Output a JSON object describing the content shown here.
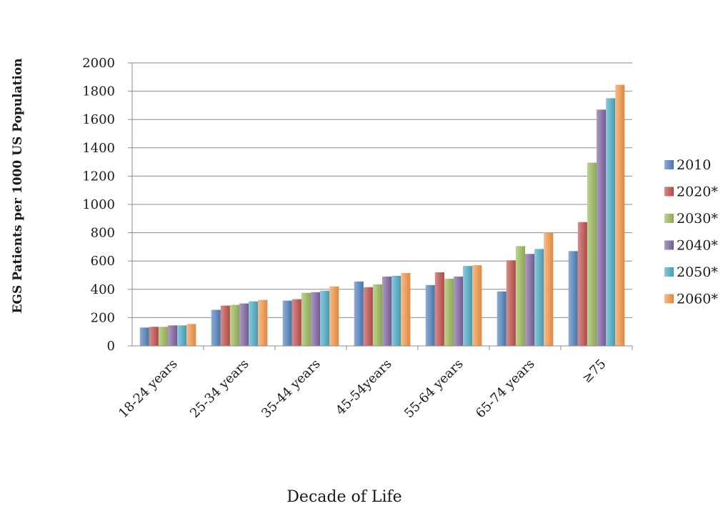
{
  "chart_data": {
    "type": "bar",
    "title": "",
    "xlabel": "Decade of Life",
    "ylabel": "EGS Patients per 1000 US Population",
    "ylim": [
      0,
      2000
    ],
    "yticks": [
      0,
      200,
      400,
      600,
      800,
      1000,
      1200,
      1400,
      1600,
      1800,
      2000
    ],
    "grid": true,
    "legend_position": "right",
    "categories": [
      "18-24 years",
      "25-34 years",
      "35-44 years",
      "45-54years",
      "55-64 years",
      "65-74 years",
      "≥75"
    ],
    "series": [
      {
        "name": "2010",
        "color": "#4f81bd",
        "values": [
          130,
          255,
          320,
          455,
          430,
          385,
          670
        ]
      },
      {
        "name": "2020*",
        "color": "#c0504d",
        "values": [
          135,
          285,
          330,
          415,
          520,
          605,
          875
        ]
      },
      {
        "name": "2030*",
        "color": "#9bbb59",
        "values": [
          135,
          290,
          375,
          435,
          475,
          705,
          1295
        ]
      },
      {
        "name": "2040*",
        "color": "#8064a2",
        "values": [
          145,
          300,
          380,
          490,
          490,
          650,
          1670
        ]
      },
      {
        "name": "2050*",
        "color": "#4bacc6",
        "values": [
          145,
          315,
          390,
          495,
          565,
          685,
          1750
        ]
      },
      {
        "name": "2060*",
        "color": "#f79646",
        "values": [
          155,
          325,
          420,
          515,
          570,
          800,
          1845
        ]
      }
    ]
  }
}
